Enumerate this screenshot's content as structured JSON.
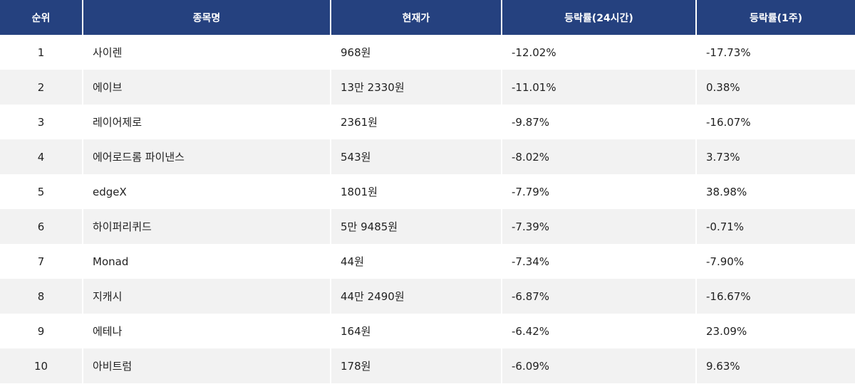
{
  "headers": [
    "순위",
    "종목명",
    "현재가",
    "등락률(24시간)",
    "등락률(1주)"
  ],
  "rows": [
    [
      "1",
      "사이렌",
      "968원",
      "-12.02%",
      "-17.73%"
    ],
    [
      "2",
      "에이브",
      "13만 2330원",
      "-11.01%",
      "0.38%"
    ],
    [
      "3",
      "레이어제로",
      "2361원",
      "-9.87%",
      "-16.07%"
    ],
    [
      "4",
      "에어로드롬 파이낸스",
      "543원",
      "-8.02%",
      "3.73%"
    ],
    [
      "5",
      "edgeX",
      "1801원",
      "-7.79%",
      "38.98%"
    ],
    [
      "6",
      "하이퍼리퀴드",
      "5만 9485원",
      "-7.39%",
      "-0.71%"
    ],
    [
      "7",
      "Monad",
      "44원",
      "-7.34%",
      "-7.90%"
    ],
    [
      "8",
      "지캐시",
      "44만 2490원",
      "-6.87%",
      "-16.67%"
    ],
    [
      "9",
      "에테나",
      "164원",
      "-6.42%",
      "23.09%"
    ],
    [
      "10",
      "아비트럼",
      "178원",
      "-6.09%",
      "9.63%"
    ]
  ],
  "colors": {
    "header_bg": "#25417f",
    "alt_row_bg": "#f2f2f2"
  }
}
